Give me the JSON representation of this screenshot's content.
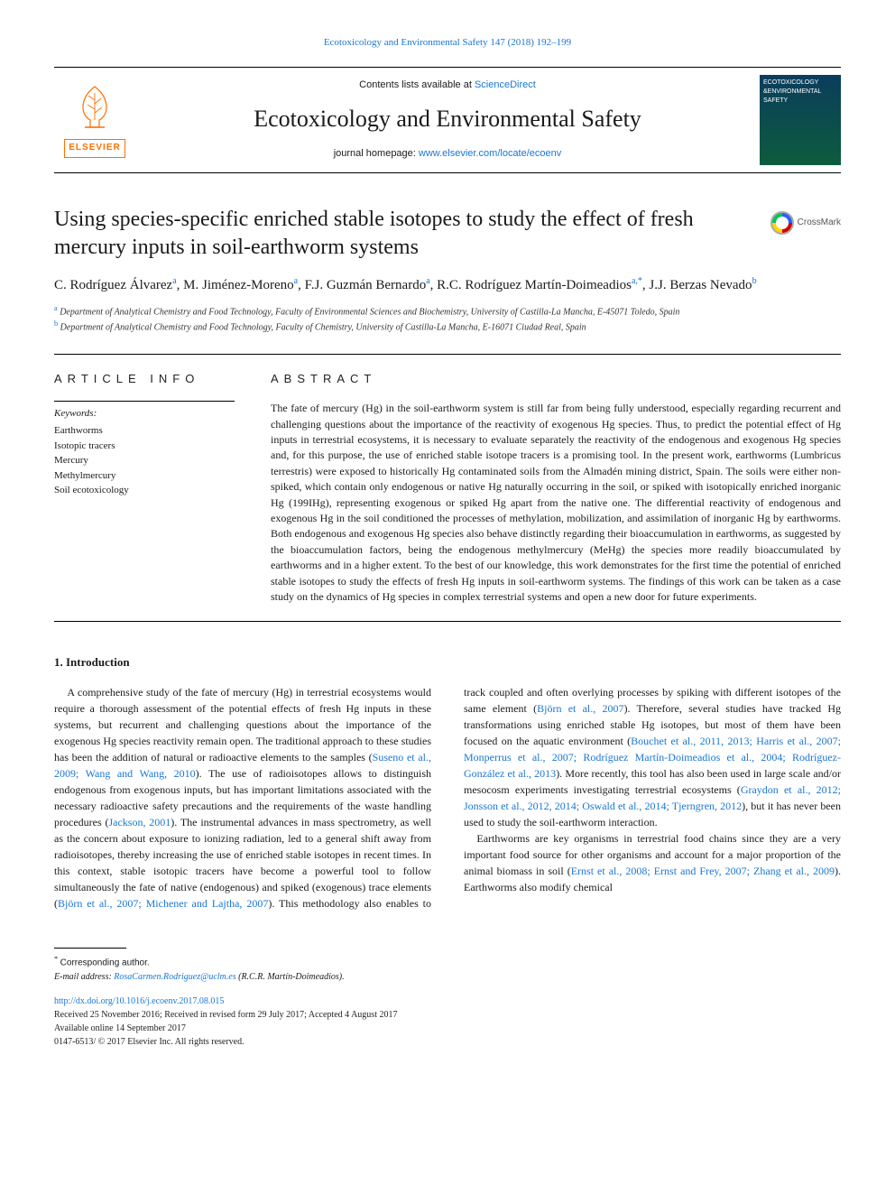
{
  "running_head": "Ecotoxicology and Environmental Safety 147 (2018) 192–199",
  "masthead": {
    "contents_prefix": "Contents lists available at ",
    "contents_link": "ScienceDirect",
    "journal": "Ecotoxicology and Environmental Safety",
    "homepage_prefix": "journal homepage: ",
    "homepage_url": "www.elsevier.com/locate/ecoenv",
    "publisher_word": "ELSEVIER",
    "cover_line1": "ECOTOXICOLOGY",
    "cover_line2": "&ENVIRONMENTAL",
    "cover_line3": "SAFETY"
  },
  "article": {
    "title": "Using species-specific enriched stable isotopes to study the effect of fresh mercury inputs in soil-earthworm systems",
    "crossmark_label": "CrossMark",
    "authors_html": "C. Rodríguez Álvarez<sup>a</sup>, M. Jiménez-Moreno<sup>a</sup>, F.J. Guzmán Bernardo<sup>a</sup>, R.C. Rodríguez Martín-Doimeadios<sup>a,</sup><sup>*</sup>, J.J. Berzas Nevado<sup>b</sup>",
    "affiliations": [
      {
        "label": "a",
        "text": "Department of Analytical Chemistry and Food Technology, Faculty of Environmental Sciences and Biochemistry, University of Castilla-La Mancha, E-45071 Toledo, Spain"
      },
      {
        "label": "b",
        "text": "Department of Analytical Chemistry and Food Technology, Faculty of Chemistry, University of Castilla-La Mancha, E-16071 Ciudad Real, Spain"
      }
    ]
  },
  "info": {
    "head": "ARTICLE INFO",
    "kw_head": "Keywords:",
    "keywords": [
      "Earthworms",
      "Isotopic tracers",
      "Mercury",
      "Methylmercury",
      "Soil ecotoxicology"
    ]
  },
  "abstract": {
    "head": "ABSTRACT",
    "text": "The fate of mercury (Hg) in the soil-earthworm system is still far from being fully understood, especially regarding recurrent and challenging questions about the importance of the reactivity of exogenous Hg species. Thus, to predict the potential effect of Hg inputs in terrestrial ecosystems, it is necessary to evaluate separately the reactivity of the endogenous and exogenous Hg species and, for this purpose, the use of enriched stable isotope tracers is a promising tool. In the present work, earthworms (Lumbricus terrestris) were exposed to historically Hg contaminated soils from the Almadén mining district, Spain. The soils were either non-spiked, which contain only endogenous or native Hg naturally occurring in the soil, or spiked with isotopically enriched inorganic Hg (199IHg), representing exogenous or spiked Hg apart from the native one. The differential reactivity of endogenous and exogenous Hg in the soil conditioned the processes of methylation, mobilization, and assimilation of inorganic Hg by earthworms. Both endogenous and exogenous Hg species also behave distinctly regarding their bioaccumulation in earthworms, as suggested by the bioaccumulation factors, being the endogenous methylmercury (MeHg) the species more readily bioaccumulated by earthworms and in a higher extent. To the best of our knowledge, this work demonstrates for the first time the potential of enriched stable isotopes to study the effects of fresh Hg inputs in soil-earthworm systems. The findings of this work can be taken as a case study on the dynamics of Hg species in complex terrestrial systems and open a new door for future experiments."
  },
  "section1": {
    "head": "1. Introduction",
    "para": "A comprehensive study of the fate of mercury (Hg) in terrestrial ecosystems would require a thorough assessment of the potential effects of fresh Hg inputs in these systems, but recurrent and challenging questions about the importance of the exogenous Hg species reactivity remain open. The traditional approach to these studies has been the addition of natural or radioactive elements to the samples (<span class=\"ref\">Suseno et al., 2009; Wang and Wang, 2010</span>). The use of radioisotopes allows to distinguish endogenous from exogenous inputs, but has important limitations associated with the necessary radioactive safety precautions and the requirements of the waste handling procedures (<span class=\"ref\">Jackson, 2001</span>). The instrumental advances in mass spectrometry, as well as the concern about exposure to ionizing radiation, led to a general shift away from radioisotopes, thereby increasing the use of enriched stable isotopes in recent times. In this context, stable isotopic tracers have become a powerful tool to follow simultaneously the fate of native (endogenous) and spiked (exogenous) trace elements (<span class=\"ref\">Björn et al., 2007; Michener and Lajtha, 2007</span>). This methodology also enables to track coupled and often overlying processes by spiking with different isotopes of the same element (<span class=\"ref\">Björn et al., 2007</span>). Therefore, several studies have tracked Hg transformations using enriched stable Hg isotopes, but most of them have been focused on the aquatic environment (<span class=\"ref\">Bouchet et al., 2011, 2013; Harris et al., 2007; Monperrus et al., 2007; Rodríguez Martín-Doimeadios et al., 2004; Rodríguez-González et al., 2013</span>). More recently, this tool has also been used in large scale and/or mesocosm experiments investigating terrestrial ecosystems (<span class=\"ref\">Graydon et al., 2012; Jonsson et al., 2012, 2014; Oswald et al., 2014; Tjerngren, 2012</span>), but it has never been used to study the soil-earthworm interaction.",
    "para2": "Earthworms are key organisms in terrestrial food chains since they are a very important food source for other organisms and account for a major proportion of the animal biomass in soil (<span class=\"ref\">Ernst et al., 2008; Ernst and Frey, 2007; Zhang et al., 2009</span>). Earthworms also modify chemical"
  },
  "footer": {
    "corr_marker": "*",
    "corr_label": "Corresponding author.",
    "email_label": "E-mail address:",
    "email": "RosaCarmen.Rodriguez@uclm.es",
    "email_paren": "(R.C.R. Martín-Doimeadios).",
    "doi": "http://dx.doi.org/10.1016/j.ecoenv.2017.08.015",
    "history": "Received 25 November 2016; Received in revised form 29 July 2017; Accepted 4 August 2017",
    "available": "Available online 14 September 2017",
    "issn": "0147-6513/ © 2017 Elsevier Inc. All rights reserved."
  },
  "colors": {
    "link": "#1976d2",
    "publisher": "#ff6f00",
    "text": "#1a1a1a",
    "cover_grad_top": "#0a3d5c",
    "cover_grad_bot": "#0d5c3d"
  }
}
